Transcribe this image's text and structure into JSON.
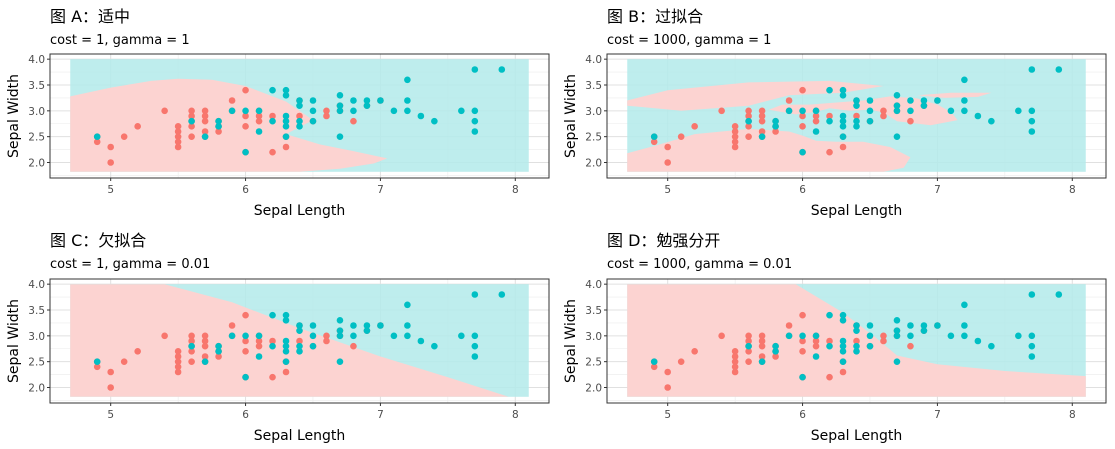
{
  "colors": {
    "class_red": "#F8766D",
    "class_teal": "#00BFC4",
    "region_red": "#FFD2D0",
    "region_teal": "#B3EAEA",
    "grid": "#EBEBEB",
    "panel_border": "#333333"
  },
  "chart_data": [
    {
      "type": "scatter",
      "title": "图 A：适中",
      "subtitle": "cost = 1, gamma = 1",
      "xlabel": "Sepal Length",
      "ylabel": "Sepal Width",
      "xlim": [
        4.55,
        8.25
      ],
      "ylim": [
        1.7,
        4.1
      ],
      "xticks": [
        "5",
        "6",
        "7",
        "8"
      ],
      "yticks": [
        "2.0",
        "2.5",
        "3.0",
        "3.5",
        "4.0"
      ],
      "grid": true,
      "background_region": "decision regions (pink = red class, light teal = teal class)"
    },
    {
      "type": "scatter",
      "title": "图 B：过拟合",
      "subtitle": "cost = 1000, gamma = 1",
      "xlabel": "Sepal Length",
      "ylabel": "Sepal Width",
      "xlim": [
        4.55,
        8.25
      ],
      "ylim": [
        1.7,
        4.1
      ],
      "xticks": [
        "5",
        "6",
        "7",
        "8"
      ],
      "yticks": [
        "2.0",
        "2.5",
        "3.0",
        "3.5",
        "4.0"
      ],
      "grid": true
    },
    {
      "type": "scatter",
      "title": "图 C：欠拟合",
      "subtitle": "cost = 1, gamma = 0.01",
      "xlabel": "Sepal Length",
      "ylabel": "Sepal Width",
      "xlim": [
        4.55,
        8.25
      ],
      "ylim": [
        1.7,
        4.1
      ],
      "xticks": [
        "5",
        "6",
        "7",
        "8"
      ],
      "yticks": [
        "2.0",
        "2.5",
        "3.0",
        "3.5",
        "4.0"
      ],
      "grid": true
    },
    {
      "type": "scatter",
      "title": "图 D：勉强分开",
      "subtitle": "cost = 1000, gamma = 0.01",
      "xlabel": "Sepal Length",
      "ylabel": "Sepal Width",
      "xlim": [
        4.55,
        8.25
      ],
      "ylim": [
        1.7,
        4.1
      ],
      "xticks": [
        "5",
        "6",
        "7",
        "8"
      ],
      "yticks": [
        "2.0",
        "2.5",
        "3.0",
        "3.5",
        "4.0"
      ],
      "grid": true
    }
  ],
  "points": {
    "red": [
      [
        4.9,
        2.4
      ],
      [
        4.9,
        2.5
      ],
      [
        5.0,
        2.0
      ],
      [
        5.0,
        2.3
      ],
      [
        5.1,
        2.5
      ],
      [
        5.2,
        2.7
      ],
      [
        5.4,
        3.0
      ],
      [
        5.5,
        2.3
      ],
      [
        5.5,
        2.4
      ],
      [
        5.5,
        2.5
      ],
      [
        5.5,
        2.6
      ],
      [
        5.5,
        2.7
      ],
      [
        5.6,
        2.5
      ],
      [
        5.6,
        2.7
      ],
      [
        5.6,
        2.8
      ],
      [
        5.6,
        2.9
      ],
      [
        5.6,
        3.0
      ],
      [
        5.7,
        2.5
      ],
      [
        5.7,
        2.6
      ],
      [
        5.7,
        2.8
      ],
      [
        5.7,
        2.9
      ],
      [
        5.7,
        3.0
      ],
      [
        5.8,
        2.6
      ],
      [
        5.8,
        2.7
      ],
      [
        5.8,
        2.8
      ],
      [
        5.9,
        3.0
      ],
      [
        5.9,
        3.2
      ],
      [
        6.0,
        2.2
      ],
      [
        6.0,
        2.7
      ],
      [
        6.0,
        2.9
      ],
      [
        6.0,
        3.4
      ],
      [
        6.1,
        2.8
      ],
      [
        6.1,
        2.9
      ],
      [
        6.1,
        3.0
      ],
      [
        6.2,
        2.2
      ],
      [
        6.2,
        2.9
      ],
      [
        6.3,
        2.3
      ],
      [
        6.3,
        2.5
      ],
      [
        6.4,
        2.9
      ],
      [
        6.4,
        3.2
      ],
      [
        6.5,
        2.8
      ],
      [
        6.6,
        2.9
      ],
      [
        6.6,
        3.0
      ],
      [
        6.7,
        3.0
      ],
      [
        6.7,
        3.1
      ],
      [
        6.8,
        2.8
      ],
      [
        6.9,
        3.1
      ],
      [
        7.0,
        3.2
      ]
    ],
    "teal": [
      [
        4.9,
        2.5
      ],
      [
        5.6,
        2.8
      ],
      [
        5.7,
        2.5
      ],
      [
        5.8,
        2.7
      ],
      [
        5.8,
        2.8
      ],
      [
        5.9,
        3.0
      ],
      [
        6.0,
        2.2
      ],
      [
        6.0,
        3.0
      ],
      [
        6.1,
        2.6
      ],
      [
        6.1,
        3.0
      ],
      [
        6.2,
        2.8
      ],
      [
        6.2,
        3.4
      ],
      [
        6.3,
        2.5
      ],
      [
        6.3,
        2.7
      ],
      [
        6.3,
        2.8
      ],
      [
        6.3,
        2.9
      ],
      [
        6.3,
        3.3
      ],
      [
        6.3,
        3.4
      ],
      [
        6.4,
        2.7
      ],
      [
        6.4,
        2.8
      ],
      [
        6.4,
        3.1
      ],
      [
        6.4,
        3.2
      ],
      [
        6.5,
        2.8
      ],
      [
        6.5,
        3.0
      ],
      [
        6.5,
        3.2
      ],
      [
        6.7,
        2.5
      ],
      [
        6.7,
        3.0
      ],
      [
        6.7,
        3.1
      ],
      [
        6.7,
        3.3
      ],
      [
        6.8,
        3.0
      ],
      [
        6.8,
        3.2
      ],
      [
        6.9,
        3.1
      ],
      [
        6.9,
        3.2
      ],
      [
        7.0,
        3.2
      ],
      [
        7.1,
        3.0
      ],
      [
        7.2,
        3.0
      ],
      [
        7.2,
        3.2
      ],
      [
        7.2,
        3.6
      ],
      [
        7.3,
        2.9
      ],
      [
        7.4,
        2.8
      ],
      [
        7.6,
        3.0
      ],
      [
        7.7,
        2.6
      ],
      [
        7.7,
        2.8
      ],
      [
        7.7,
        3.0
      ],
      [
        7.7,
        3.8
      ],
      [
        7.9,
        3.8
      ]
    ]
  }
}
